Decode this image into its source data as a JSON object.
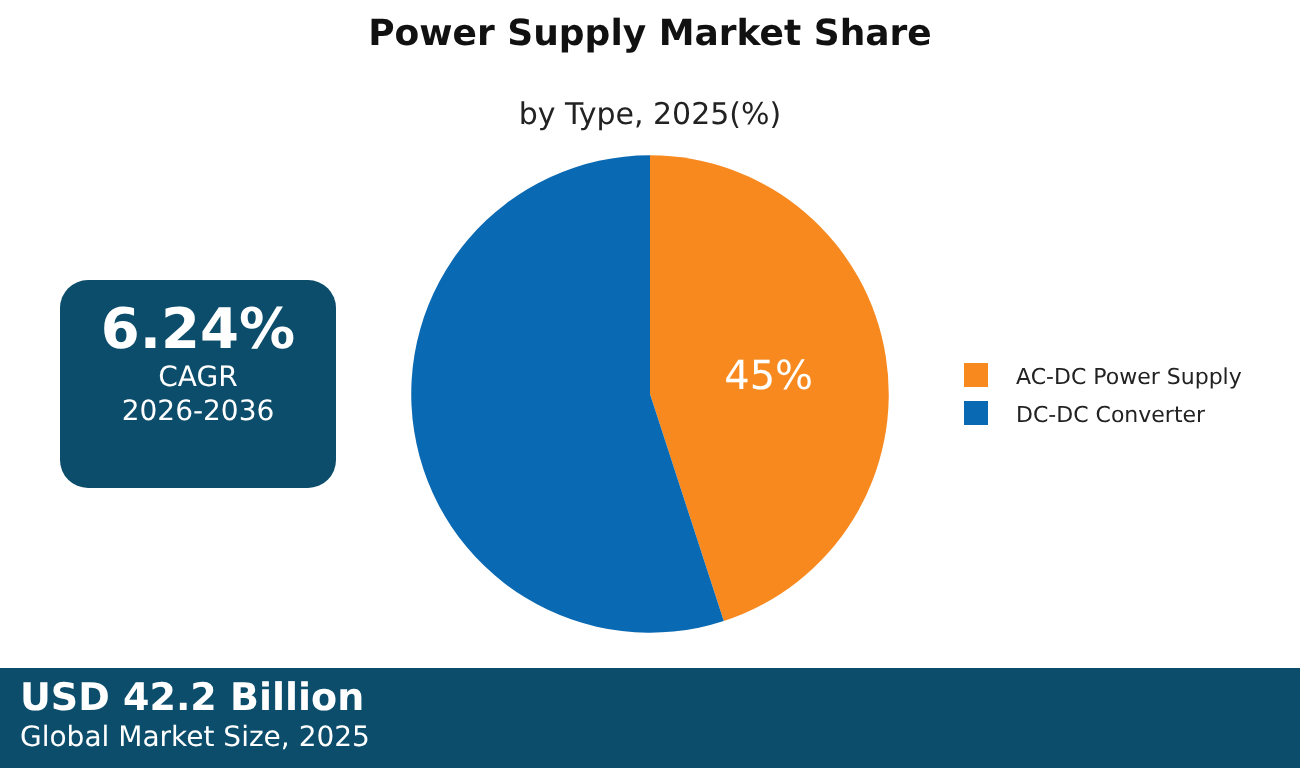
{
  "chart_data": [
    {
      "type": "pie",
      "title": "Power Supply Market Share",
      "subtitle": "by Type, 2025(%)",
      "categories": [
        "AC-DC Power Supply",
        "DC-DC Converter"
      ],
      "values": [
        45,
        55
      ],
      "colors": [
        "#f7891f",
        "#0a69b3"
      ],
      "value_labels": [
        "45%",
        null
      ],
      "legend": "right",
      "annotations": [
        "USD 42.2 Billion",
        "Global Market Size, 2025"
      ]
    },
    {
      "type": "other",
      "title": "6.24%",
      "annotations": [
        "CAGR",
        "2026-2036"
      ]
    }
  ]
}
